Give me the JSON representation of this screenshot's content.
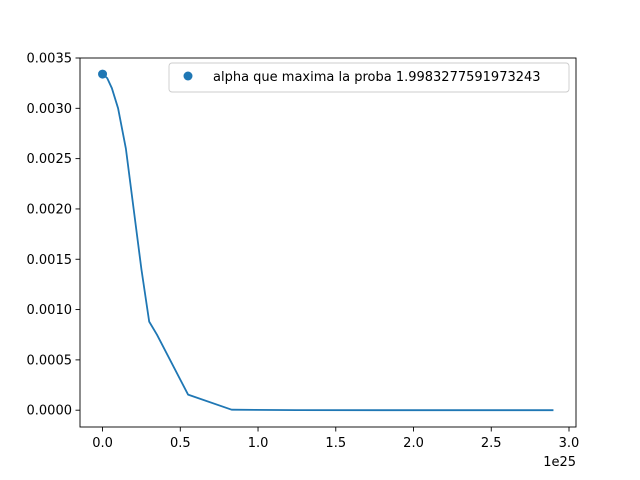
{
  "chart_data": {
    "type": "line",
    "title": "",
    "xlabel": "",
    "ylabel": "",
    "x_offset_text": "1e25",
    "xlim": [
      -1.45e+24,
      3.045e+25
    ],
    "ylim": [
      -0.000167,
      0.0035
    ],
    "xticks": [
      0,
      5e+24,
      1e+25,
      1.5e+25,
      2e+25,
      2.5e+25,
      3e+25
    ],
    "xtick_labels": [
      "0.0",
      "0.5",
      "1.0",
      "1.5",
      "2.0",
      "2.5",
      "3.0"
    ],
    "yticks": [
      0,
      0.0005,
      0.001,
      0.0015,
      0.002,
      0.0025,
      0.003,
      0.0035
    ],
    "ytick_labels": [
      "0.0000",
      "0.0005",
      "0.0010",
      "0.0015",
      "0.0020",
      "0.0025",
      "0.0030",
      "0.0035"
    ],
    "grid": false,
    "legend_position": "top-right",
    "line_color": "#1f77b4",
    "series": [
      {
        "type": "line",
        "x": [
          0,
          3e+23,
          6e+23,
          1e+24,
          1.5e+24,
          2e+24,
          2.5e+24,
          3e+24,
          3.5e+24,
          5.5e+24,
          8.3e+24,
          1.25e+25,
          1.8e+25,
          2.4e+25,
          2.9e+25
        ],
        "y": [
          0.00334,
          0.0033,
          0.0032,
          0.003,
          0.0026,
          0.002,
          0.0014,
          0.00088,
          0.00075,
          0.000155,
          5e-06,
          5e-07,
          0.0,
          0.0,
          0.0
        ]
      },
      {
        "type": "scatter",
        "name": "alpha que maxima la proba 1.9983277591973243",
        "x": [
          1.9983277591973243
        ],
        "y": [
          0.00334
        ]
      }
    ]
  }
}
